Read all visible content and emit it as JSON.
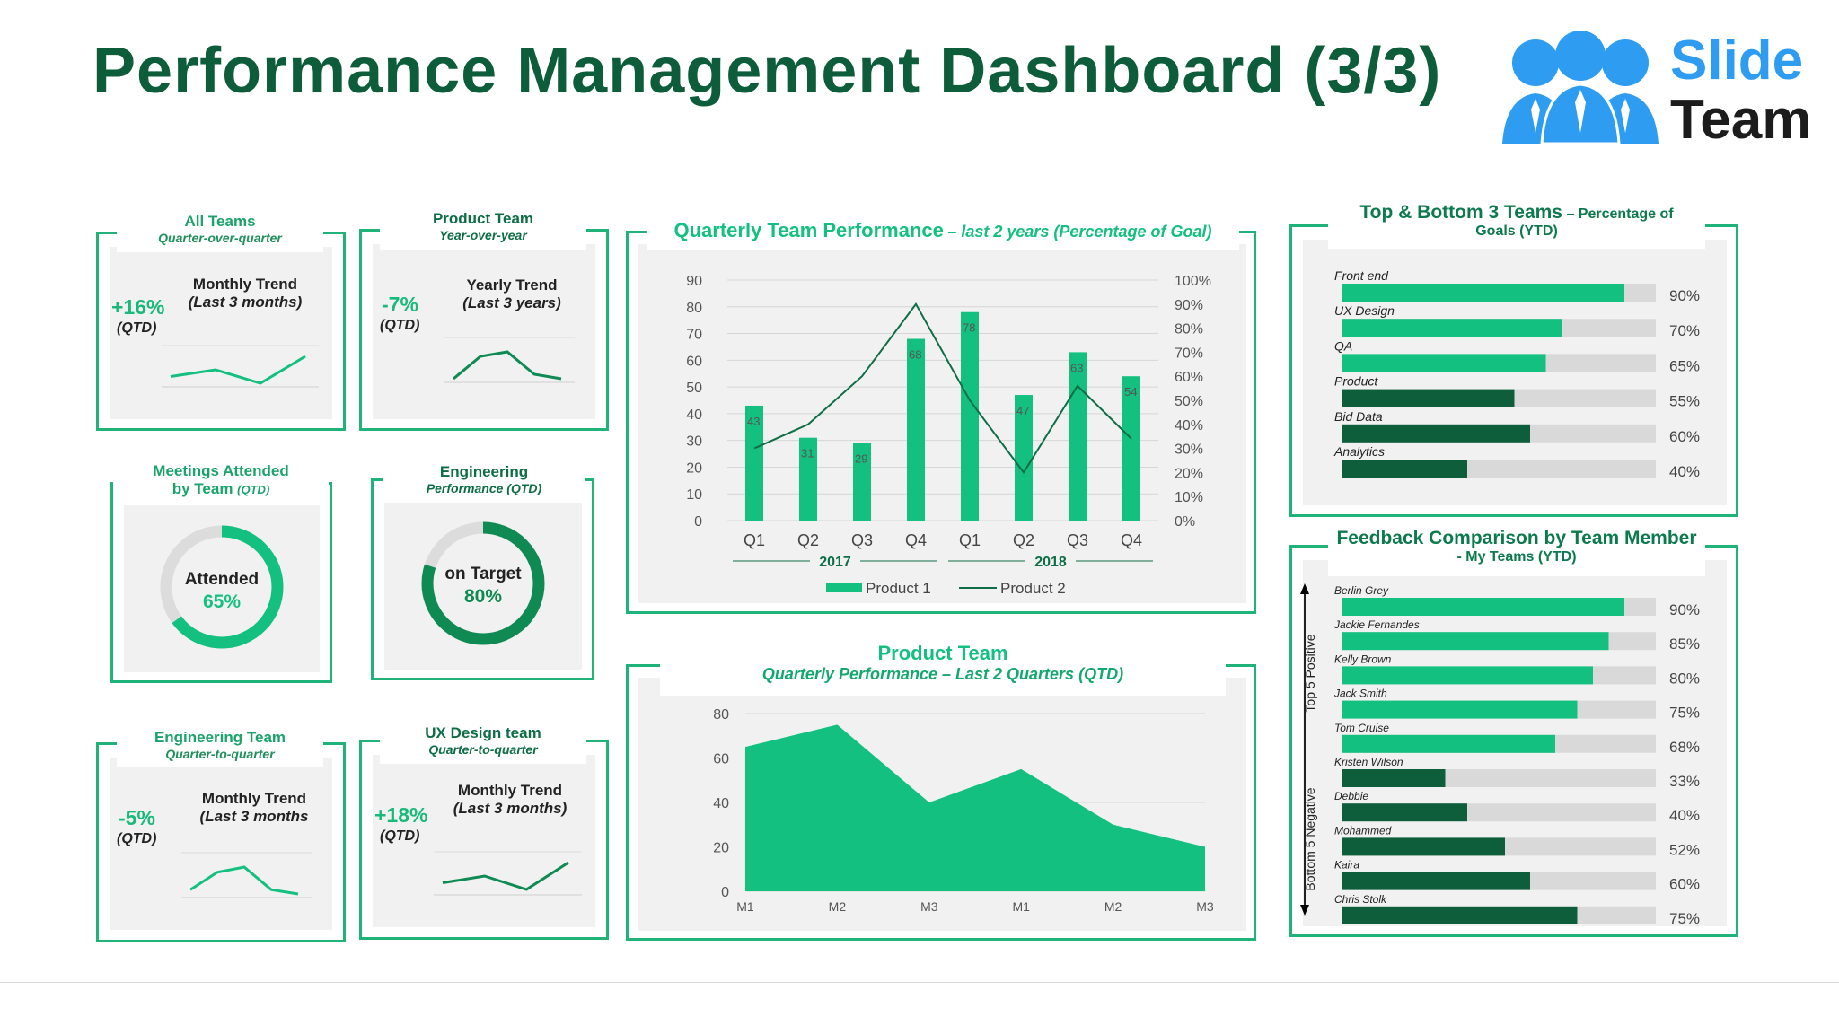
{
  "page": {
    "title": "Performance Management Dashboard (3/3)"
  },
  "logo": {
    "line1": "Slide",
    "line2": "Team"
  },
  "kpis": [
    {
      "title": "All Teams",
      "subtitle": "Quarter-over-quarter",
      "value": "+16%",
      "unit": "(QTD)",
      "trend_title": "Monthly Trend",
      "trend_sub": "(Last 3 months)",
      "spark": [
        2,
        3,
        1,
        5
      ]
    },
    {
      "title": "Product Team",
      "subtitle": "Year-over-year",
      "value": "-7%",
      "unit": "(QTD)",
      "trend_title": "Yearly Trend",
      "trend_sub": "(Last 3 years)",
      "spark": [
        1,
        3.5,
        4,
        1.5,
        1
      ]
    },
    {
      "title": "Engineering Team",
      "subtitle": "Quarter-to-quarter",
      "value": "-5%",
      "unit": "(QTD)",
      "trend_title": "Monthly Trend",
      "trend_sub": "(Last 3 months",
      "spark": [
        2,
        4,
        4.6,
        2,
        1.5
      ]
    },
    {
      "title": "UX Design team",
      "subtitle": "Quarter-to-quarter",
      "value": "+18%",
      "unit": "(QTD)",
      "trend_title": "Monthly Trend",
      "trend_sub": "(Last 3 months)",
      "spark": [
        2,
        3,
        1,
        5
      ]
    }
  ],
  "donuts": [
    {
      "title1": "Meetings Attended",
      "title2": "by Team",
      "title2_suffix": "(QTD)",
      "label": "Attended",
      "value_text": "65%",
      "value": 65
    },
    {
      "title1": "Engineering",
      "title2": "Performance (QTD)",
      "label": "on Target",
      "value_text": "80%",
      "value": 80
    }
  ],
  "quarterly": {
    "title": "Quarterly Team Performance",
    "subtitle": "– last 2 years (Percentage of Goal)",
    "legend": [
      "Product 1",
      "Product 2"
    ],
    "years": [
      "2017",
      "2018"
    ]
  },
  "product_team": {
    "title": "Product Team",
    "subtitle": "Quarterly Performance – Last 2 Quarters (QTD)"
  },
  "top_bottom": {
    "title": "Top & Bottom 3 Teams",
    "title_suffix": "– Percentage of",
    "title_line2": "Goals (YTD)"
  },
  "feedback": {
    "title": "Feedback Comparison by Team Member",
    "subtitle": "- My Teams (YTD)",
    "top_label": "Top 5 Positive",
    "bottom_label": "Bottom 5 Negative"
  },
  "colors": {
    "green": "#14c07f",
    "dark": "#0e5e3c",
    "frame": "#1fb37a",
    "grey_bar": "#d9d9d9"
  },
  "chart_data": [
    {
      "type": "bar",
      "title": "Quarterly Team Performance – last 2 years (Percentage of Goal)",
      "categories": [
        "Q1",
        "Q2",
        "Q3",
        "Q4",
        "Q1",
        "Q2",
        "Q3",
        "Q4"
      ],
      "groups": [
        "2017",
        "2017",
        "2017",
        "2017",
        "2018",
        "2018",
        "2018",
        "2018"
      ],
      "series": [
        {
          "name": "Product 1",
          "type": "bar",
          "axis": "left",
          "values": [
            43,
            31,
            29,
            68,
            78,
            47,
            63,
            54
          ]
        },
        {
          "name": "Product 2",
          "type": "line",
          "axis": "right",
          "values": [
            30,
            40,
            60,
            90,
            50,
            20,
            56,
            34
          ]
        }
      ],
      "ylim": [
        0,
        90
      ],
      "yticks": [
        0,
        10,
        20,
        30,
        40,
        50,
        60,
        70,
        80,
        90
      ],
      "y2lim": [
        0,
        100
      ],
      "y2ticks": [
        "0%",
        "10%",
        "20%",
        "30%",
        "40%",
        "50%",
        "60%",
        "70%",
        "80%",
        "90%",
        "100%"
      ]
    },
    {
      "type": "area",
      "title": "Product Team – Quarterly Performance – Last 2 Quarters (QTD)",
      "x": [
        "M1",
        "M2",
        "M3",
        "M1",
        "M2",
        "M3"
      ],
      "values": [
        65,
        75,
        40,
        55,
        30,
        20
      ],
      "ylim": [
        0,
        80
      ],
      "yticks": [
        0,
        20,
        40,
        60,
        80
      ]
    },
    {
      "type": "bar",
      "orientation": "horizontal",
      "title": "Top & Bottom 3 Teams – Percentage of Goals (YTD)",
      "categories": [
        "Front end",
        "UX Design",
        "QA",
        "Product",
        "Bid Data",
        "Analytics"
      ],
      "values": [
        90,
        70,
        65,
        55,
        60,
        40
      ],
      "labels": [
        "90%",
        "70%",
        "65%",
        "55%",
        "60%",
        "40%"
      ],
      "tone": [
        "light",
        "light",
        "light",
        "dark",
        "dark",
        "dark"
      ],
      "xlim": [
        0,
        100
      ]
    },
    {
      "type": "bar",
      "orientation": "horizontal",
      "title": "Feedback Comparison by Team Member - My Teams (YTD)",
      "categories": [
        "Berlin Grey",
        "Jackie Fernandes",
        "Kelly Brown",
        "Jack Smith",
        "Tom Cruise",
        "Kristen Wilson",
        "Debbie",
        "Mohammed",
        "Kaira",
        "Chris Stolk"
      ],
      "values": [
        90,
        85,
        80,
        75,
        68,
        33,
        40,
        52,
        60,
        75
      ],
      "labels": [
        "90%",
        "85%",
        "80%",
        "75%",
        "68%",
        "33%",
        "40%",
        "52%",
        "60%",
        "75%"
      ],
      "tone": [
        "light",
        "light",
        "light",
        "light",
        "light",
        "dark",
        "dark",
        "dark",
        "dark",
        "dark"
      ],
      "xlim": [
        0,
        100
      ]
    }
  ]
}
